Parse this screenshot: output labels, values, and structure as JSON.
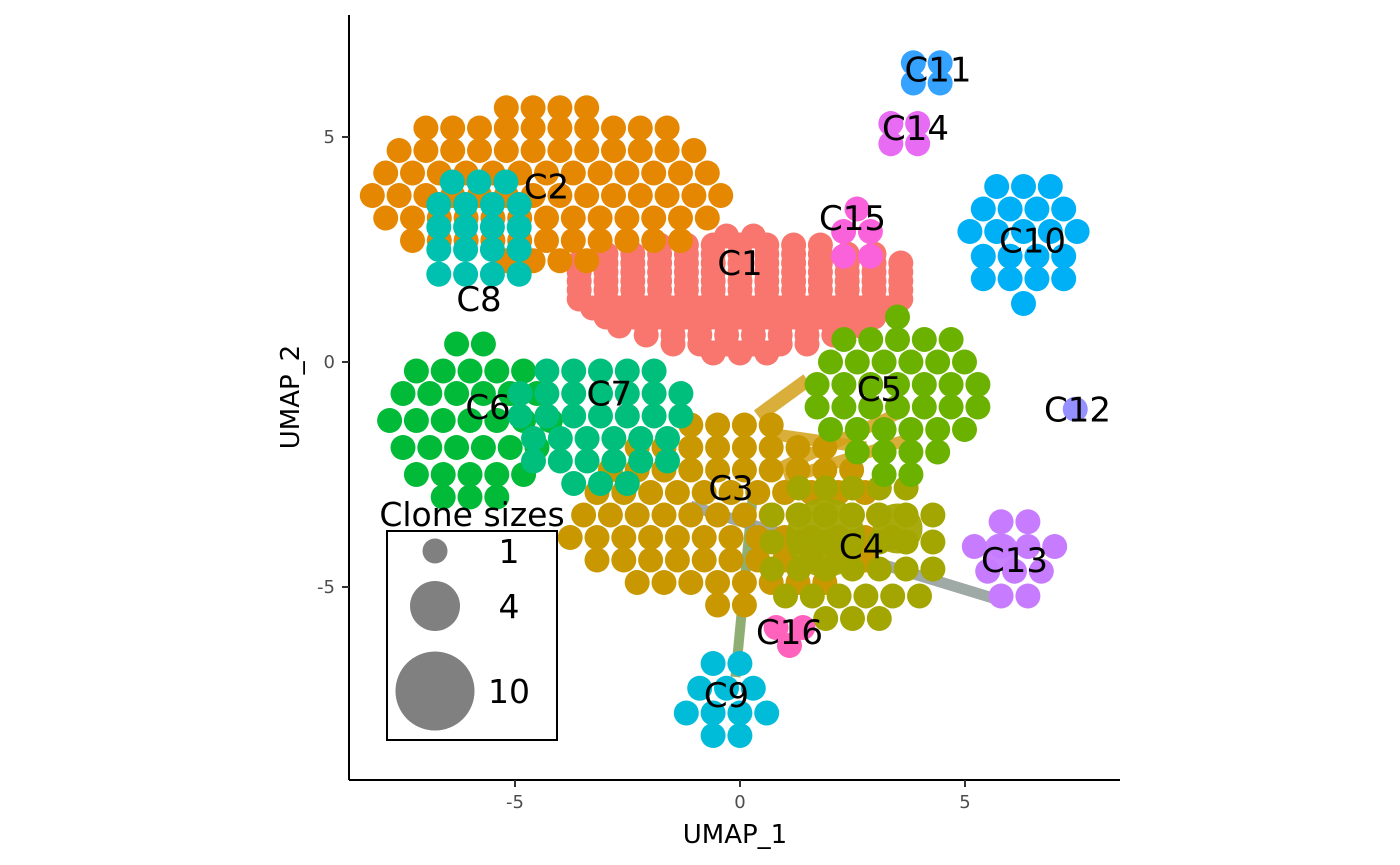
{
  "chart_data": {
    "type": "scatter",
    "xlabel": "UMAP_1",
    "ylabel": "UMAP_2",
    "xlim": [
      -8.6,
      8.6
    ],
    "ylim": [
      -9.3,
      7.8
    ],
    "x_ticks": [
      -5,
      0,
      5
    ],
    "y_ticks": [
      -5,
      0,
      5
    ],
    "x_tick_labels": [
      "-5",
      "0",
      "5"
    ],
    "y_tick_labels": [
      "-5",
      "0",
      "5"
    ],
    "grid": false,
    "legend": {
      "title": "Clone sizes",
      "placement": "bottom-left",
      "sizes": [
        1,
        4,
        10
      ],
      "labels": [
        "1",
        "4",
        "10"
      ],
      "color": "#808080"
    },
    "series": [
      {
        "name": "C1",
        "color": "#F8766D",
        "center": [
          0,
          2.2
        ],
        "rows": [
          [
            0.6,
            2
          ],
          [
            0.4,
            7
          ],
          [
            0.2,
            11
          ],
          [
            0.0,
            13
          ],
          [
            -0.2,
            13
          ],
          [
            -0.4,
            13
          ],
          [
            -0.6,
            13
          ],
          [
            -0.8,
            13
          ],
          [
            -1.0,
            12
          ],
          [
            -1.2,
            11
          ],
          [
            -1.4,
            10
          ],
          [
            -1.6,
            8
          ],
          [
            -1.8,
            6
          ],
          [
            -2.0,
            3
          ]
        ],
        "label_pos": [
          0,
          2.2
        ]
      },
      {
        "name": "C2",
        "color": "#E58700",
        "center": [
          -4.3,
          4.2
        ],
        "rows": [
          [
            1.45,
            4
          ],
          [
            1.0,
            10
          ],
          [
            0.5,
            12
          ],
          [
            0.0,
            13
          ],
          [
            -0.5,
            14
          ],
          [
            -1.0,
            13
          ],
          [
            -1.5,
            11
          ],
          [
            -1.95,
            4
          ]
        ],
        "label_pos": [
          -4.3,
          3.9
        ]
      },
      {
        "name": "C3",
        "color": "#C99800",
        "center": [
          -0.2,
          -2.6
        ],
        "rows": [
          [
            1.2,
            4
          ],
          [
            0.7,
            8
          ],
          [
            0.2,
            10
          ],
          [
            -0.3,
            11
          ],
          [
            -0.8,
            12
          ],
          [
            -1.3,
            13
          ],
          [
            -1.8,
            11
          ],
          [
            -2.3,
            8
          ],
          [
            -2.8,
            2
          ]
        ],
        "label_pos": [
          -0.2,
          -2.8
        ]
      },
      {
        "name": "C4",
        "color": "#A3A500",
        "center": [
          2.5,
          -4.0
        ],
        "rows": [
          [
            1.2,
            5
          ],
          [
            0.6,
            7
          ],
          [
            0.0,
            7
          ],
          [
            -0.6,
            7
          ],
          [
            -1.2,
            6
          ],
          [
            -1.7,
            3
          ]
        ],
        "label_pos": [
          2.7,
          -4.1
        ],
        "big": [
          [
            1.9,
            -3.9,
            10
          ],
          [
            3.5,
            -3.7,
            4
          ]
        ]
      },
      {
        "name": "C5",
        "color": "#6BB100",
        "center": [
          3.5,
          -0.4
        ],
        "rows": [
          [
            1.4,
            1
          ],
          [
            0.9,
            5
          ],
          [
            0.4,
            6
          ],
          [
            -0.1,
            7
          ],
          [
            -0.6,
            7
          ],
          [
            -1.1,
            6
          ],
          [
            -1.6,
            4
          ],
          [
            -2.1,
            2
          ]
        ],
        "label_pos": [
          3.1,
          -0.6
        ]
      },
      {
        "name": "C6",
        "color": "#00BA38",
        "center": [
          -6.0,
          -0.8
        ],
        "rows": [
          [
            1.2,
            2
          ],
          [
            0.6,
            5
          ],
          [
            0.1,
            6
          ],
          [
            -0.5,
            7
          ],
          [
            -1.1,
            6
          ],
          [
            -1.7,
            5
          ],
          [
            -2.2,
            3
          ]
        ],
        "label_pos": [
          -5.6,
          -1.0
        ]
      },
      {
        "name": "C7",
        "color": "#00BF7D",
        "center": [
          -3.1,
          -0.7
        ],
        "rows": [
          [
            0.5,
            5
          ],
          [
            0.0,
            7
          ],
          [
            -0.5,
            7
          ],
          [
            -1.0,
            6
          ],
          [
            -1.5,
            6
          ],
          [
            -2.0,
            3
          ]
        ],
        "label_pos": [
          -2.9,
          -0.7
        ]
      },
      {
        "name": "C8",
        "color": "#00C0AF",
        "center": [
          -5.8,
          1.4
        ],
        "rows": [
          [
            2.6,
            3
          ],
          [
            2.1,
            4
          ],
          [
            1.6,
            4
          ],
          [
            1.1,
            4
          ],
          [
            0.55,
            4
          ]
        ],
        "label_pos": [
          -5.8,
          1.4
        ]
      },
      {
        "name": "C9",
        "color": "#00BCD8",
        "center": [
          -0.3,
          -7.6
        ],
        "rows": [
          [
            -6.7,
            2
          ],
          [
            -7.25,
            3
          ],
          [
            -7.8,
            4
          ],
          [
            -8.3,
            2
          ]
        ],
        "label_pos": [
          -0.3,
          -7.4
        ]
      },
      {
        "name": "C10",
        "color": "#00B0F6",
        "center": [
          6.3,
          2.6
        ],
        "rows": [
          [
            3.9,
            3
          ],
          [
            3.4,
            4
          ],
          [
            2.9,
            5
          ],
          [
            2.35,
            4
          ],
          [
            1.85,
            4
          ],
          [
            1.3,
            1
          ]
        ],
        "label_pos": [
          6.5,
          2.7
        ]
      },
      {
        "name": "C11",
        "color": "#35A2FF",
        "center": [
          4.15,
          6.45
        ],
        "rows": [
          [
            6.65,
            2
          ],
          [
            6.2,
            2
          ]
        ],
        "label_pos": [
          4.4,
          6.5
        ]
      },
      {
        "name": "C12",
        "color": "#9590FF",
        "center": [
          7.45,
          -1.05
        ],
        "rows": [
          [
            -1.05,
            1
          ]
        ],
        "label_pos": [
          7.5,
          -1.05
        ]
      },
      {
        "name": "C13",
        "color": "#C77CFF",
        "center": [
          6.1,
          -4.3
        ],
        "rows": [
          [
            -3.55,
            2
          ],
          [
            -4.1,
            4
          ],
          [
            -4.65,
            3
          ],
          [
            -5.2,
            2
          ]
        ],
        "label_pos": [
          6.1,
          -4.4
        ],
        "big": [
          [
            5.8,
            -4.2,
            2
          ]
        ]
      },
      {
        "name": "C14",
        "color": "#E76BF3",
        "center": [
          3.65,
          5.05
        ],
        "rows": [
          [
            5.3,
            2
          ],
          [
            4.85,
            2
          ]
        ],
        "label_pos": [
          3.9,
          5.2
        ]
      },
      {
        "name": "C15",
        "color": "#FA62DB",
        "center": [
          2.6,
          2.9
        ],
        "rows": [
          [
            3.4,
            1
          ],
          [
            2.9,
            2
          ],
          [
            2.35,
            2
          ]
        ],
        "label_pos": [
          2.5,
          3.2
        ]
      },
      {
        "name": "C16",
        "color": "#FF62BC",
        "center": [
          1.1,
          -6.0
        ],
        "rows": [
          [
            -5.9,
            2
          ],
          [
            -6.3,
            1
          ]
        ],
        "label_pos": [
          1.1,
          -6.0
        ]
      }
    ],
    "edges": [
      {
        "from": [
          0.4,
          -1.2
        ],
        "to": [
          1.5,
          -0.4
        ],
        "color": "#D4A017",
        "width": 14
      },
      {
        "from": [
          0.7,
          -1.6
        ],
        "to": [
          2.8,
          -1.9
        ],
        "color": "#D4A017",
        "width": 12
      },
      {
        "from": [
          0.8,
          -2.4
        ],
        "to": [
          3.6,
          -1.1
        ],
        "color": "#D4A017",
        "width": 12
      },
      {
        "from": [
          1.0,
          -2.6
        ],
        "to": [
          3.8,
          -1.7
        ],
        "color": "#D4A017",
        "width": 12
      },
      {
        "from": [
          0.3,
          -2.8
        ],
        "to": [
          -0.1,
          -7.0
        ],
        "color": "#7BA05B",
        "width": 10
      },
      {
        "from": [
          -1.1,
          -3.2
        ],
        "to": [
          5.8,
          -5.3
        ],
        "color": "#8E9A95",
        "width": 11
      }
    ],
    "labels": [
      "C1",
      "C2",
      "C3",
      "C4",
      "C5",
      "C6",
      "C7",
      "C8",
      "C9",
      "C10",
      "C11",
      "C12",
      "C13",
      "C14",
      "C15",
      "C16"
    ]
  }
}
